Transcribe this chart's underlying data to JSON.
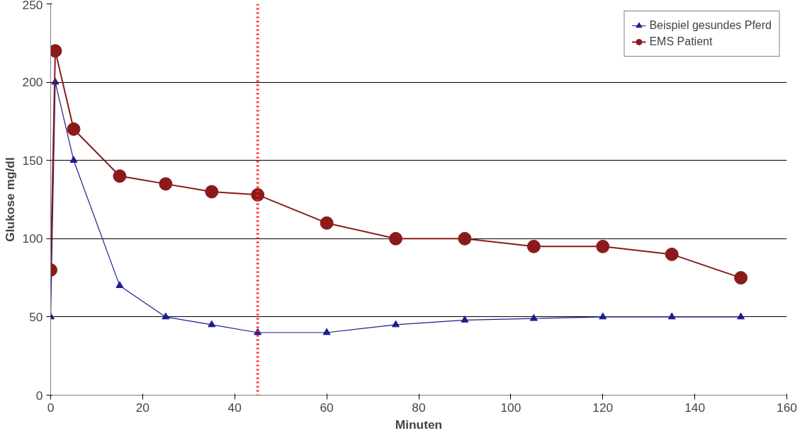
{
  "chart_data": {
    "type": "line",
    "xlabel": "Minuten",
    "ylabel": "Glukose mg/dl",
    "xlim": [
      0,
      160
    ],
    "xticks": [
      0,
      20,
      40,
      60,
      80,
      100,
      120,
      140,
      160
    ],
    "ylim": [
      0,
      250
    ],
    "yticks": [
      0,
      50,
      100,
      150,
      200,
      250
    ],
    "grid": "y",
    "legend": "top right",
    "line_style": "solid",
    "series": [
      {
        "name": "Beispiel gesundes Pferd",
        "color": "#1c1c8c",
        "marker": "triangle",
        "x": [
          0,
          1,
          5,
          15,
          25,
          35,
          45,
          60,
          75,
          90,
          105,
          120,
          135,
          150
        ],
        "values": [
          50,
          200,
          150,
          70,
          50,
          45,
          40,
          40,
          45,
          48,
          49,
          50,
          50,
          50
        ]
      },
      {
        "name": "EMS Patient",
        "color": "#8b1a1a",
        "marker": "circle",
        "x": [
          0,
          1,
          5,
          15,
          25,
          35,
          45,
          60,
          75,
          90,
          105,
          120,
          135,
          150
        ],
        "values": [
          80,
          220,
          170,
          140,
          135,
          130,
          128,
          110,
          100,
          100,
          95,
          95,
          90,
          75
        ]
      }
    ],
    "ref_lines": [
      {
        "axis": "x",
        "value": 45,
        "color": "#ff2020",
        "line_style": "dotted"
      }
    ]
  }
}
